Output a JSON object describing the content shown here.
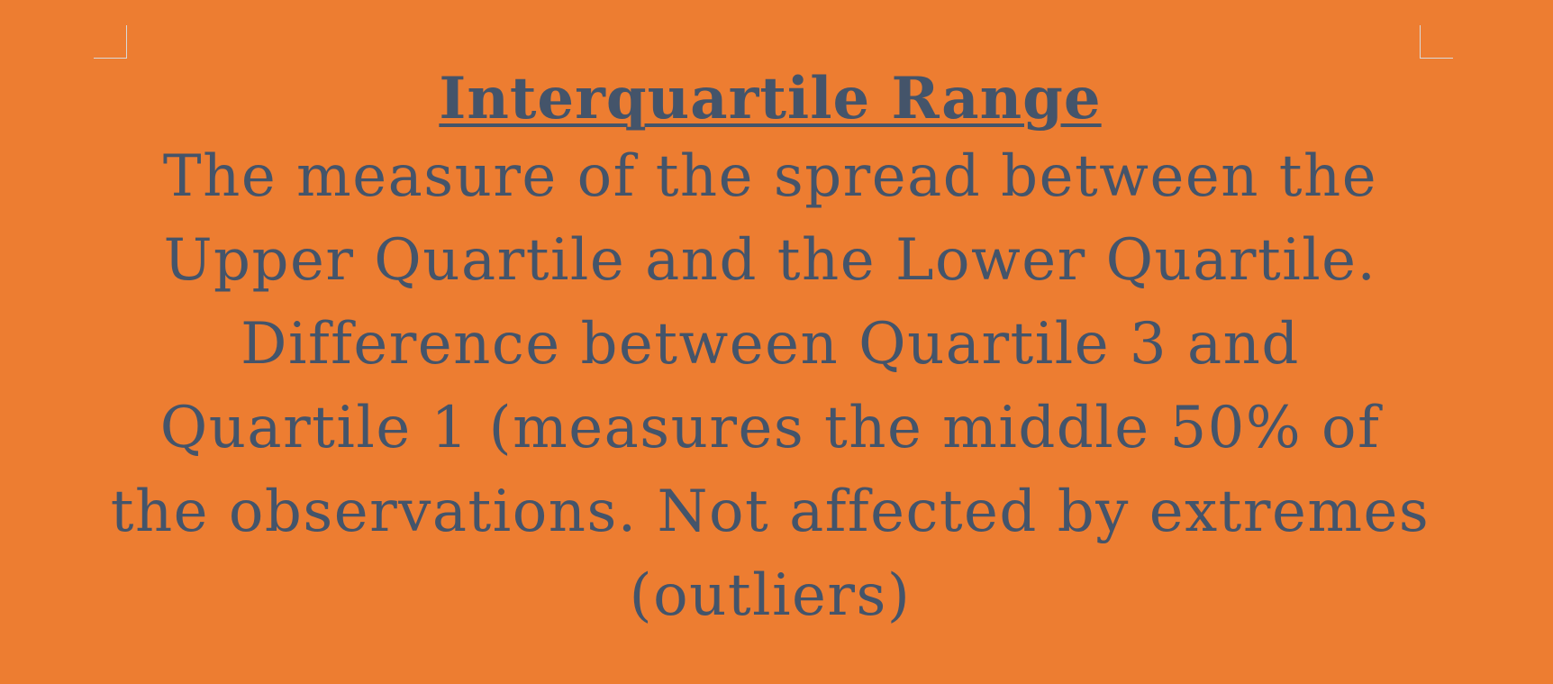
{
  "slide": {
    "title": "Interquartile Range",
    "body": "The measure of the spread between the Upper Quartile and the Lower Quartile. Difference between Quartile 3 and Quartile 1 (measures the middle 50% of the observations. Not affected by extremes (outliers)"
  },
  "colors": {
    "background": "#ed7d31",
    "text": "#44546a"
  }
}
